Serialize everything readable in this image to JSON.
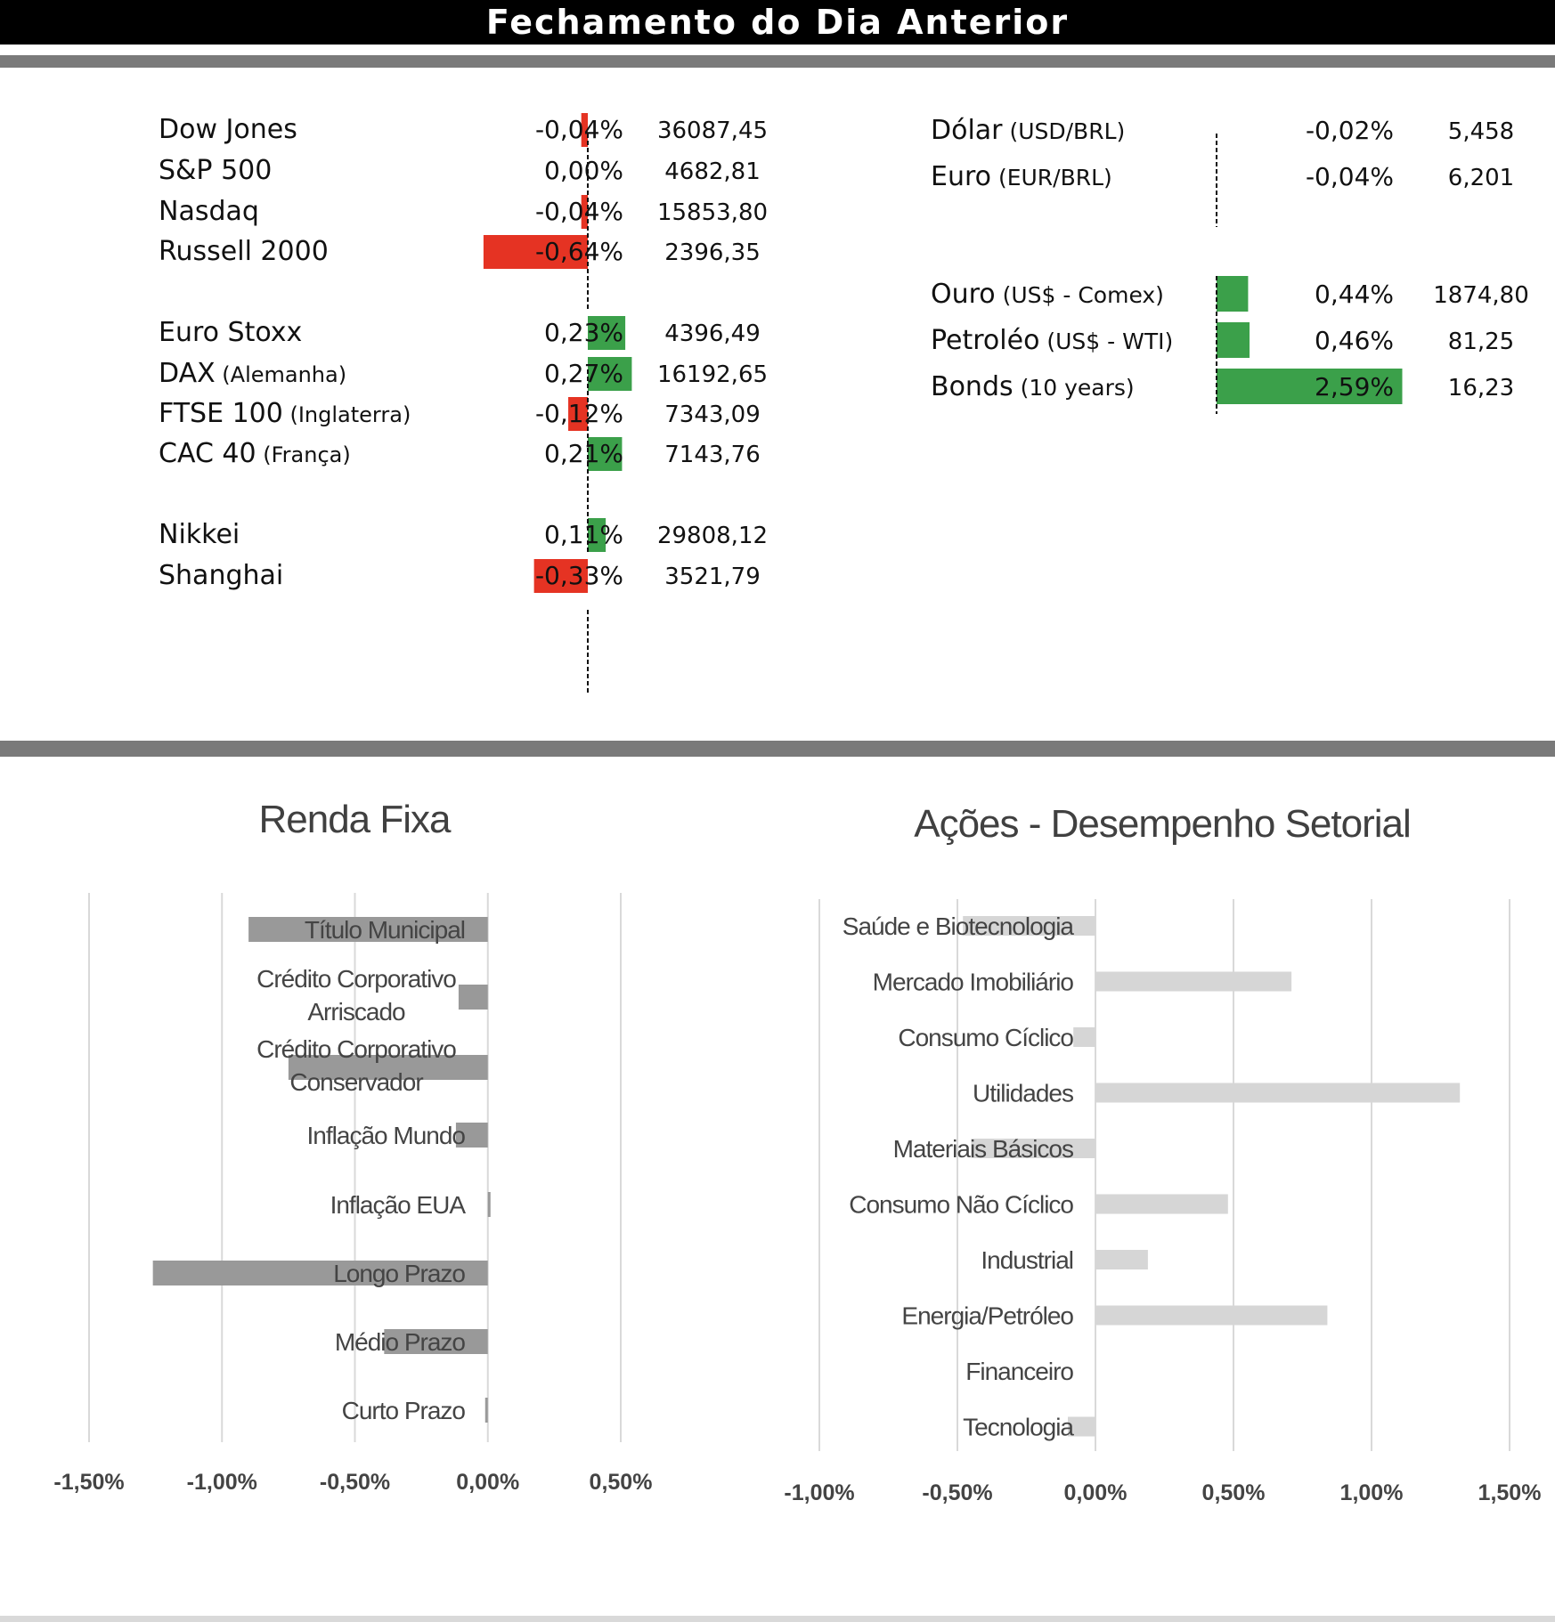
{
  "header": {
    "title": "Fechamento do Dia Anterior"
  },
  "colors": {
    "negative": "#e53323",
    "positive": "#3ba04a",
    "renda_fixa_bar": "#999999",
    "setorial_bar": "#d6d6d6",
    "grid": "#d9d9d9"
  },
  "indices": [
    {
      "name": "Dow Jones",
      "note": "",
      "change": -0.04,
      "change_label": "-0,04%",
      "close": "36087,45"
    },
    {
      "name": "S&P 500",
      "note": "",
      "change": 0.0,
      "change_label": "0,00%",
      "close": "4682,81"
    },
    {
      "name": "Nasdaq",
      "note": "",
      "change": -0.04,
      "change_label": "-0,04%",
      "close": "15853,80"
    },
    {
      "name": "Russell 2000",
      "note": "",
      "change": -0.64,
      "change_label": "-0,64%",
      "close": "2396,35"
    },
    {
      "name": "Euro Stoxx",
      "note": "",
      "change": 0.23,
      "change_label": "0,23%",
      "close": "4396,49"
    },
    {
      "name": "DAX",
      "note": "(Alemanha)",
      "change": 0.27,
      "change_label": "0,27%",
      "close": "16192,65"
    },
    {
      "name": "FTSE 100",
      "note": "(Inglaterra)",
      "change": -0.12,
      "change_label": "-0,12%",
      "close": "7343,09"
    },
    {
      "name": "CAC 40",
      "note": "(França)",
      "change": 0.21,
      "change_label": "0,21%",
      "close": "7143,76"
    },
    {
      "name": "Nikkei",
      "note": "",
      "change": 0.11,
      "change_label": "0,11%",
      "close": "29808,12"
    },
    {
      "name": "Shanghai",
      "note": "",
      "change": -0.33,
      "change_label": "-0,33%",
      "close": "3521,79"
    }
  ],
  "currencies": [
    {
      "name": "Dólar",
      "note": "(USD/BRL)",
      "change": -0.02,
      "change_label": "-0,02%",
      "close": "5,458"
    },
    {
      "name": "Euro",
      "note": "(EUR/BRL)",
      "change": -0.04,
      "change_label": "-0,04%",
      "close": "6,201"
    }
  ],
  "commodities": [
    {
      "name": "Ouro",
      "note": "(US$ - Comex)",
      "change": 0.44,
      "change_label": "0,44%",
      "close": "1874,80"
    },
    {
      "name": "Petroléo",
      "note": "(US$ - WTI)",
      "change": 0.46,
      "change_label": "0,46%",
      "close": "81,25"
    },
    {
      "name": "Bonds",
      "note": "(10 years)",
      "change": 2.59,
      "change_label": "2,59%",
      "close": "16,23"
    }
  ],
  "chart_data": [
    {
      "type": "bar",
      "orientation": "horizontal",
      "title": "Renda Fixa",
      "categories": [
        "Título Municipal",
        "Crédito Corporativo Arriscado",
        "Crédito Corporativo Conservador",
        "Inflação Mundo",
        "Inflação EUA",
        "Longo Prazo",
        "Médio Prazo",
        "Curto Prazo"
      ],
      "category_lines": [
        [
          "Título Municipal"
        ],
        [
          "Crédito Corporativo",
          "Arriscado"
        ],
        [
          "Crédito Corporativo",
          "Conservador"
        ],
        [
          "Inflação Mundo"
        ],
        [
          "Inflação EUA"
        ],
        [
          "Longo Prazo"
        ],
        [
          "Médio Prazo"
        ],
        [
          "Curto Prazo"
        ]
      ],
      "values": [
        -0.9,
        -0.11,
        -0.75,
        -0.12,
        0.01,
        -1.26,
        -0.39,
        -0.01
      ],
      "xlim": [
        -1.5,
        0.5
      ],
      "xticks": [
        -1.5,
        -1.0,
        -0.5,
        0.0,
        0.5
      ],
      "xtick_labels": [
        "-1,50%",
        "-1,00%",
        "-0,50%",
        "0,00%",
        "0,50%"
      ],
      "grid": true
    },
    {
      "type": "bar",
      "orientation": "horizontal",
      "title": "Ações - Desempenho Setorial",
      "categories": [
        "Saúde e Biotecnologia",
        "Mercado Imobiliário",
        "Consumo Cíclico",
        "Utilidades",
        "Materiais Básicos",
        "Consumo Não Cíclico",
        "Industrial",
        "Energia/Petróleo",
        "Financeiro",
        "Tecnologia"
      ],
      "values": [
        -0.48,
        0.71,
        -0.08,
        1.32,
        -0.45,
        0.48,
        0.19,
        0.84,
        0.0,
        -0.1
      ],
      "xlim": [
        -1.0,
        1.5
      ],
      "xticks": [
        -1.0,
        -0.5,
        0.0,
        0.5,
        1.0,
        1.5
      ],
      "xtick_labels": [
        "-1,00%",
        "-0,50%",
        "0,00%",
        "0,50%",
        "1,00%",
        "1,50%"
      ],
      "grid": true
    }
  ]
}
